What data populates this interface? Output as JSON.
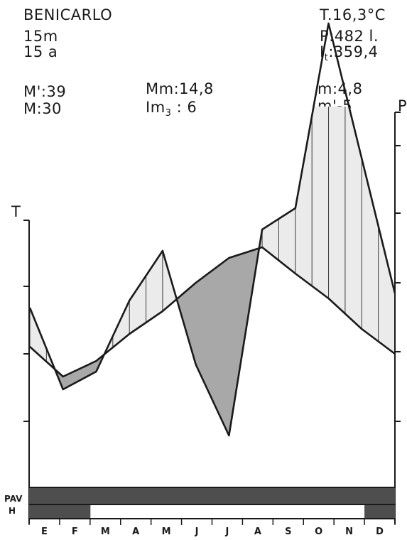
{
  "header": {
    "station": "BENICARLO",
    "altitude": "15m",
    "years": "15 a",
    "mean_temp": "T.16,3°C",
    "precip": "P:482 l.",
    "thermic_index": "359,4",
    "abs_max": "M':39",
    "mean_max": "M:30",
    "mean_monthly_max": "Mm:14,8",
    "im3": "6",
    "mean_min": "m:4,8",
    "abs_min": "m'-5"
  },
  "chart_data": {
    "type": "line",
    "categories": [
      "E",
      "F",
      "M",
      "A",
      "M",
      "J",
      "J",
      "A",
      "S",
      "O",
      "N",
      "D"
    ],
    "y_left_label": "T",
    "y_right_label": "P",
    "series": [
      {
        "name": "",
        "values": [
          10.5,
          6.3,
          8.5,
          12.3,
          15.5,
          19.5,
          23,
          24.5,
          20.8,
          17.3,
          13,
          9.5
        ]
      },
      {
        "name": "",
        "values": [
          16,
          4.5,
          7,
          17,
          24,
          8,
          -2,
          27,
          30,
          56,
          37,
          18
        ]
      }
    ],
    "bars": {
      "PAV": {
        "label": "PAV",
        "shaded_months": [
          "E",
          "F",
          "M",
          "A",
          "M",
          "J",
          "J",
          "A",
          "S",
          "O",
          "N",
          "D"
        ]
      },
      "H": {
        "label": "H",
        "shaded_months": [
          "E",
          "F",
          "D"
        ]
      }
    }
  }
}
